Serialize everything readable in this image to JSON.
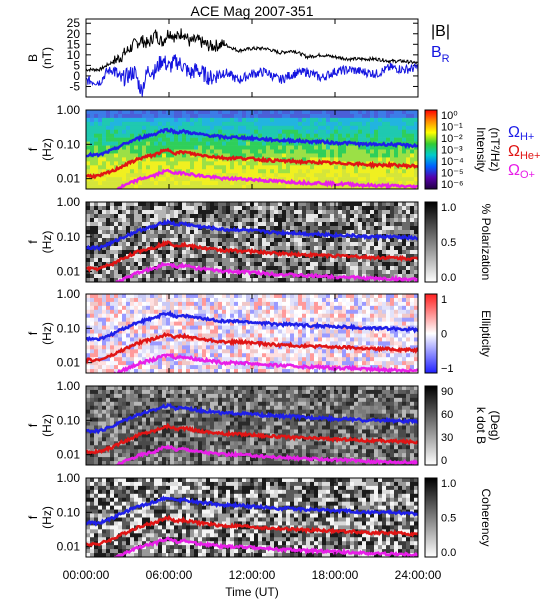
{
  "title": "ACE Mag 2007-351",
  "x_axis": {
    "label": "Time (UT)",
    "ticks": [
      "00:00:00",
      "06:00:00",
      "12:00:00",
      "18:00:00",
      "24:00:00"
    ],
    "tick_hours": [
      0,
      6,
      12,
      18,
      24
    ],
    "range_hours": [
      0,
      24
    ]
  },
  "chart_data": [
    {
      "type": "line",
      "panel": "B",
      "ylabel": "B",
      "yunit": "(nT)",
      "ylim": [
        -10,
        27
      ],
      "yticks": [
        25,
        20,
        15,
        10,
        5,
        0,
        -5
      ],
      "series": [
        {
          "name": "|B|",
          "color": "#000000",
          "x": [
            0,
            1,
            1.5,
            2,
            2.5,
            3,
            3.5,
            4,
            4.5,
            5,
            5.5,
            6,
            6.5,
            7,
            7.5,
            8,
            9,
            10,
            11,
            12,
            13,
            14,
            15,
            16,
            17,
            18,
            19,
            20,
            21,
            22,
            23,
            24
          ],
          "values": [
            3,
            3,
            5,
            7,
            9,
            12,
            15,
            17,
            15,
            20,
            16,
            21,
            18,
            21,
            16,
            17,
            14,
            15,
            12,
            13,
            13,
            11,
            12,
            9,
            10,
            9,
            8,
            8,
            8,
            7,
            7,
            6
          ]
        },
        {
          "name": "B",
          "sub": "R",
          "color": "#1515e0",
          "x": [
            0,
            1,
            1.5,
            2,
            2.5,
            3,
            3.5,
            4,
            4.5,
            5,
            5.5,
            6,
            6.5,
            7,
            7.5,
            8,
            9,
            10,
            11,
            12,
            13,
            14,
            15,
            16,
            17,
            18,
            19,
            20,
            21,
            22,
            23,
            24
          ],
          "values": [
            -2,
            -3,
            2,
            3,
            -2,
            0,
            2,
            -7,
            3,
            2,
            8,
            4,
            7,
            5,
            1,
            3,
            -1,
            2,
            -2,
            1,
            2,
            -2,
            1,
            2,
            -1,
            2,
            3,
            2,
            1,
            4,
            3,
            4
          ]
        }
      ]
    },
    {
      "type": "heatmap",
      "panel": "spectral-intensity",
      "ylabel": "f",
      "yunit": "(Hz)",
      "ylim": [
        0.005,
        1.0
      ],
      "yscale": "log",
      "yticks": [
        "1.00",
        "0.10",
        "0.01"
      ],
      "colorbar": {
        "label": "Intensity",
        "unit": "(nT²/Hz)",
        "scale": "log",
        "ticks": [
          "10⁰",
          "10⁻¹",
          "10⁻²",
          "10⁻³",
          "10⁻⁴",
          "10⁻⁵",
          "10⁻⁶"
        ]
      }
    },
    {
      "type": "heatmap",
      "panel": "polarization",
      "ylabel": "f",
      "yunit": "(Hz)",
      "ylim": [
        0.005,
        1.0
      ],
      "yscale": "log",
      "yticks": [
        "1.00",
        "0.10",
        "0.01"
      ],
      "colorbar": {
        "label": "% Polarization",
        "ticks": [
          "1.0",
          "0.5",
          "0.0"
        ]
      }
    },
    {
      "type": "heatmap",
      "panel": "ellipticity",
      "ylabel": "f",
      "yunit": "(Hz)",
      "ylim": [
        0.005,
        1.0
      ],
      "yscale": "log",
      "yticks": [
        "1.00",
        "0.10",
        "0.01"
      ],
      "colorbar": {
        "label": "Ellipticity",
        "ticks": [
          "1",
          "0",
          "−1"
        ]
      }
    },
    {
      "type": "heatmap",
      "panel": "k-dot-B",
      "ylabel": "f",
      "yunit": "(Hz)",
      "ylim": [
        0.005,
        1.0
      ],
      "yscale": "log",
      "yticks": [
        "1.00",
        "0.10",
        "0.01"
      ],
      "colorbar": {
        "label": "k dot B",
        "unit": "(Deg)",
        "ticks": [
          "90",
          "60",
          "30",
          "0"
        ]
      }
    },
    {
      "type": "heatmap",
      "panel": "coherency",
      "ylabel": "f",
      "yunit": "(Hz)",
      "ylim": [
        0.005,
        1.0
      ],
      "yscale": "log",
      "yticks": [
        "1.00",
        "0.10",
        "0.01"
      ],
      "colorbar": {
        "label": "Coherency",
        "ticks": [
          "1.0",
          "0.5",
          "0.0"
        ]
      }
    }
  ],
  "gyrofrequency_lines": {
    "x": [
      0,
      1,
      2,
      3,
      4,
      5,
      5.5,
      6,
      6.5,
      7,
      8,
      9,
      10,
      11,
      12,
      13,
      14,
      15,
      16,
      17,
      18,
      19,
      20,
      21,
      22,
      23,
      24
    ],
    "series": [
      {
        "name": "Ω",
        "sub": "H+",
        "color": "#1f1fe8",
        "values": [
          0.05,
          0.048,
          0.07,
          0.11,
          0.16,
          0.2,
          0.25,
          0.27,
          0.22,
          0.24,
          0.2,
          0.18,
          0.16,
          0.16,
          0.15,
          0.14,
          0.13,
          0.13,
          0.12,
          0.12,
          0.11,
          0.11,
          0.1,
          0.1,
          0.1,
          0.095,
          0.09
        ]
      },
      {
        "name": "Ω",
        "sub": "He+",
        "color": "#e01515",
        "values": [
          0.012,
          0.012,
          0.017,
          0.027,
          0.04,
          0.05,
          0.062,
          0.068,
          0.055,
          0.06,
          0.05,
          0.045,
          0.04,
          0.04,
          0.038,
          0.035,
          0.033,
          0.032,
          0.03,
          0.03,
          0.028,
          0.028,
          0.026,
          0.025,
          0.025,
          0.024,
          0.023
        ]
      },
      {
        "name": "Ω",
        "sub": "O+",
        "color": "#e81ee8",
        "values": [
          0.0032,
          0.003,
          0.0044,
          0.0068,
          0.01,
          0.0125,
          0.0155,
          0.017,
          0.014,
          0.015,
          0.0125,
          0.0112,
          0.01,
          0.01,
          0.0095,
          0.0088,
          0.0083,
          0.008,
          0.0075,
          0.0075,
          0.007,
          0.007,
          0.0065,
          0.0063,
          0.0062,
          0.006,
          0.0058
        ]
      }
    ]
  }
}
